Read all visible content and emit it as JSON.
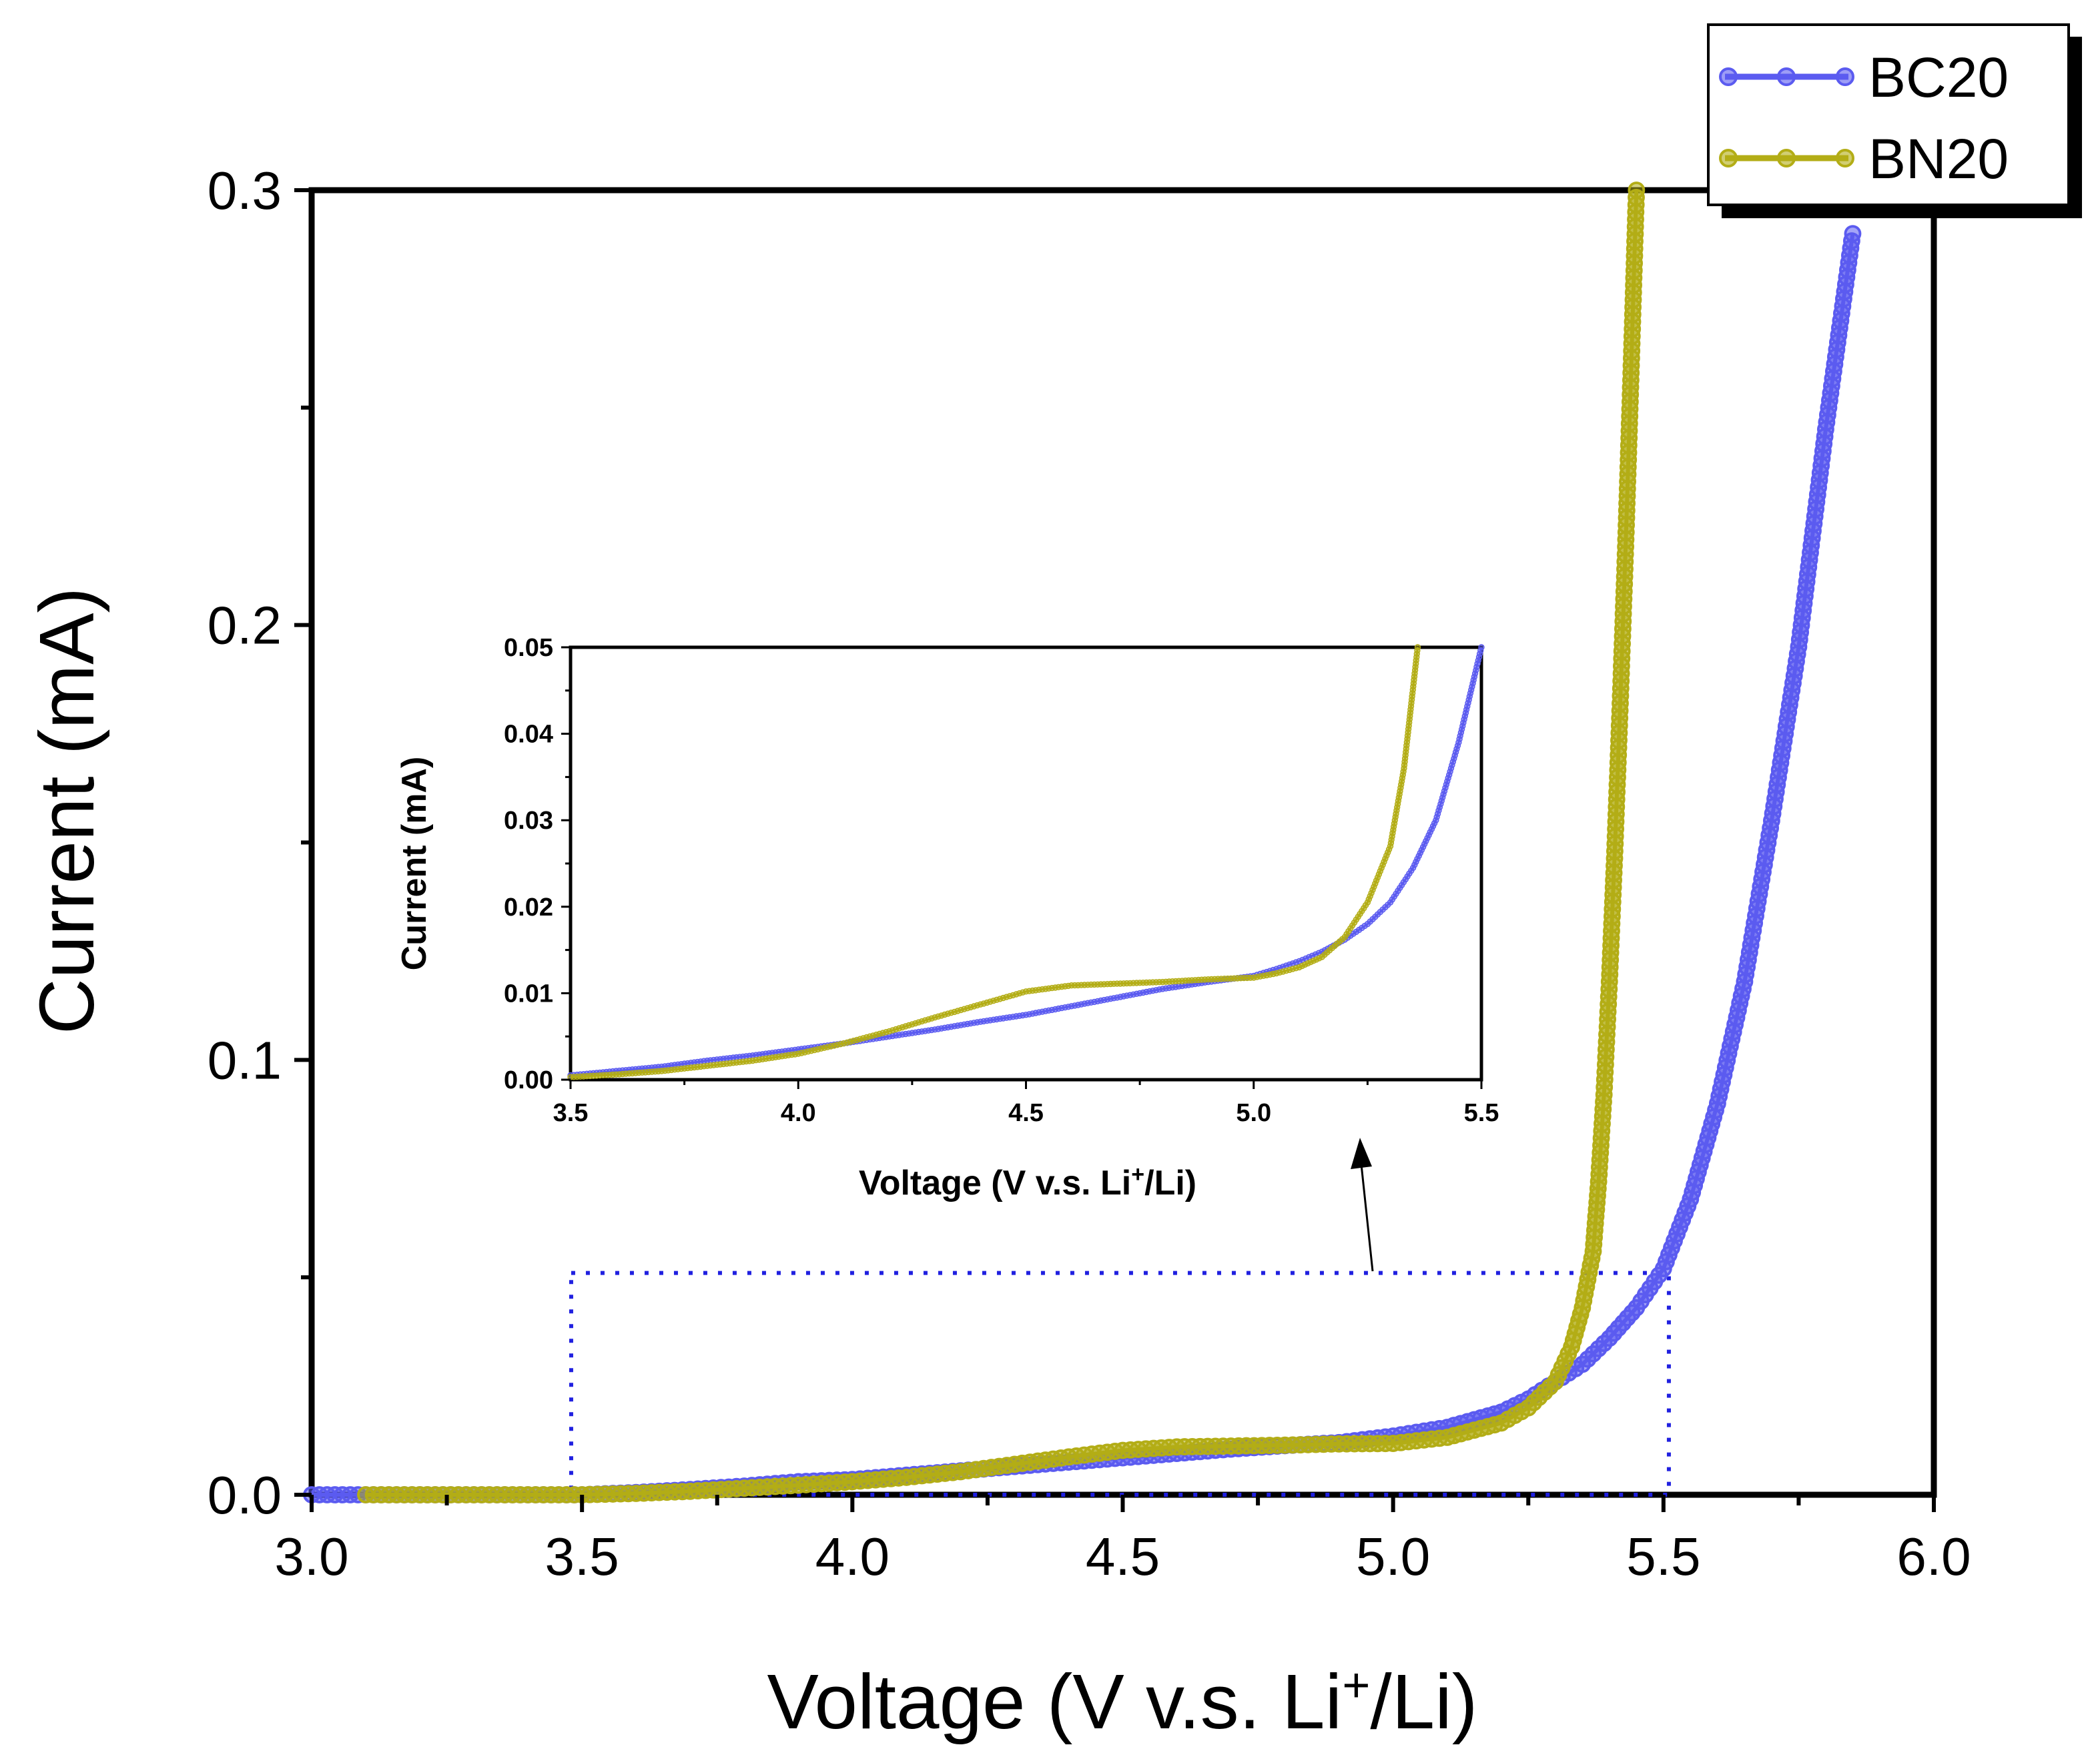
{
  "chart_data": [
    {
      "id": "main",
      "type": "line",
      "title": "",
      "xlabel": "Voltage (V v.s. Li",
      "xlabel_sup": "+",
      "xlabel_suffix": "/Li)",
      "ylabel": "Current (mA)",
      "xlim": [
        3.0,
        6.0
      ],
      "ylim": [
        0.0,
        0.3
      ],
      "xticks": [
        "3.0",
        "3.5",
        "4.0",
        "4.5",
        "5.0",
        "5.5",
        "6.0"
      ],
      "yticks": [
        "0.0",
        "0.1",
        "0.2",
        "0.3"
      ],
      "legend_position": "top-right",
      "grid": false,
      "series": [
        {
          "name": "BC20",
          "color": "#5b5bf0",
          "x": [
            3.0,
            3.1,
            3.2,
            3.3,
            3.4,
            3.5,
            3.6,
            3.7,
            3.8,
            3.9,
            4.0,
            4.1,
            4.2,
            4.3,
            4.4,
            4.5,
            4.6,
            4.7,
            4.8,
            4.9,
            5.0,
            5.1,
            5.2,
            5.25,
            5.3,
            5.35,
            5.4,
            5.45,
            5.5,
            5.55,
            5.6,
            5.65,
            5.7,
            5.75,
            5.8,
            5.85
          ],
          "values": [
            0.0,
            0.0,
            0.0,
            0.0,
            0.0,
            0.0,
            0.0005,
            0.0012,
            0.002,
            0.003,
            0.0035,
            0.0045,
            0.0055,
            0.0065,
            0.0075,
            0.0085,
            0.0095,
            0.0105,
            0.0113,
            0.012,
            0.0135,
            0.0155,
            0.019,
            0.022,
            0.026,
            0.03,
            0.036,
            0.043,
            0.052,
            0.068,
            0.09,
            0.118,
            0.155,
            0.195,
            0.245,
            0.29
          ]
        },
        {
          "name": "BN20",
          "color": "#b3ad16",
          "x": [
            3.1,
            3.2,
            3.3,
            3.4,
            3.5,
            3.6,
            3.7,
            3.8,
            3.9,
            4.0,
            4.1,
            4.2,
            4.3,
            4.4,
            4.5,
            4.6,
            4.7,
            4.8,
            4.9,
            5.0,
            5.1,
            5.2,
            5.25,
            5.3,
            5.33,
            5.35,
            5.37,
            5.38,
            5.39,
            5.4,
            5.41,
            5.42,
            5.43,
            5.44,
            5.45
          ],
          "values": [
            0.0,
            0.0,
            0.0,
            0.0,
            0.0,
            0.0003,
            0.0008,
            0.0015,
            0.0022,
            0.003,
            0.004,
            0.0053,
            0.007,
            0.0087,
            0.0102,
            0.011,
            0.0112,
            0.0114,
            0.0117,
            0.0118,
            0.0132,
            0.0165,
            0.02,
            0.026,
            0.034,
            0.043,
            0.056,
            0.072,
            0.092,
            0.118,
            0.148,
            0.182,
            0.218,
            0.258,
            0.3
          ]
        }
      ],
      "annotation": {
        "zoom_box_x": [
          3.48,
          5.51
        ],
        "zoom_box_y": [
          0.0,
          0.051
        ],
        "zoom_box_color": "#2020e0"
      }
    },
    {
      "id": "inset",
      "type": "line",
      "title": "",
      "xlabel": "Voltage (V v.s. Li",
      "xlabel_sup": "+",
      "xlabel_suffix": "/Li)",
      "ylabel": "Current (mA)",
      "xlim": [
        3.5,
        5.5
      ],
      "ylim": [
        0.0,
        0.05
      ],
      "xticks": [
        "3.5",
        "4.0",
        "4.5",
        "5.0",
        "5.5"
      ],
      "yticks": [
        "0.00",
        "0.01",
        "0.02",
        "0.03",
        "0.04",
        "0.05"
      ],
      "series": [
        {
          "name": "BC20",
          "color": "#5b5bf0",
          "x": [
            3.5,
            3.6,
            3.7,
            3.8,
            3.9,
            4.0,
            4.1,
            4.2,
            4.3,
            4.4,
            4.5,
            4.6,
            4.7,
            4.8,
            4.9,
            5.0,
            5.05,
            5.1,
            5.15,
            5.2,
            5.25,
            5.3,
            5.35,
            5.4,
            5.45,
            5.5
          ],
          "values": [
            0.0005,
            0.001,
            0.0015,
            0.0022,
            0.0028,
            0.0035,
            0.0042,
            0.005,
            0.0058,
            0.0067,
            0.0075,
            0.0085,
            0.0095,
            0.0105,
            0.0113,
            0.012,
            0.0128,
            0.0137,
            0.0148,
            0.0162,
            0.018,
            0.0205,
            0.0245,
            0.03,
            0.039,
            0.05
          ]
        },
        {
          "name": "BN20",
          "color": "#b3ad16",
          "x": [
            3.5,
            3.6,
            3.7,
            3.8,
            3.9,
            4.0,
            4.1,
            4.2,
            4.3,
            4.4,
            4.5,
            4.6,
            4.7,
            4.8,
            4.9,
            5.0,
            5.05,
            5.1,
            5.15,
            5.2,
            5.25,
            5.3,
            5.33,
            5.36
          ],
          "values": [
            0.0003,
            0.0006,
            0.001,
            0.0016,
            0.0022,
            0.003,
            0.0042,
            0.0056,
            0.0072,
            0.0087,
            0.0102,
            0.0109,
            0.0111,
            0.0113,
            0.0116,
            0.0118,
            0.0123,
            0.013,
            0.0142,
            0.0165,
            0.0205,
            0.027,
            0.036,
            0.05
          ]
        }
      ]
    }
  ]
}
